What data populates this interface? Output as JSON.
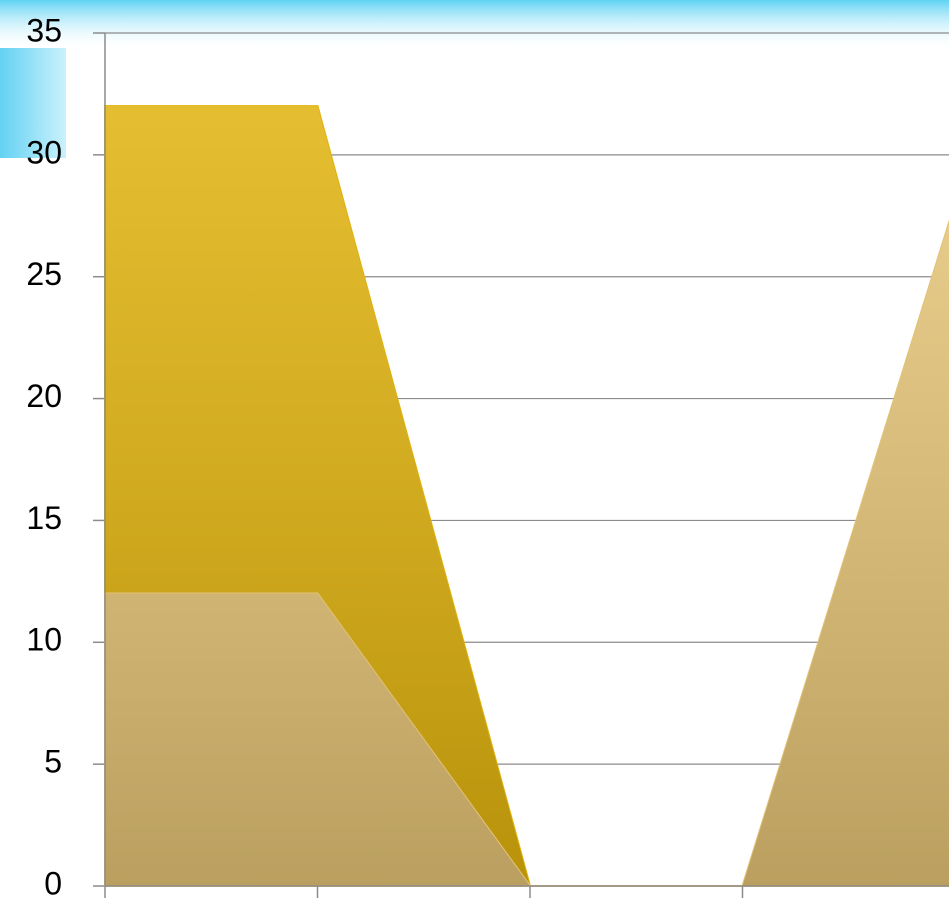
{
  "chart_data": {
    "type": "area",
    "categories": [
      null,
      null,
      null,
      null,
      null
    ],
    "series": [
      {
        "color": "#e0b20c",
        "values": [
          32,
          32,
          0,
          0,
          0
        ]
      },
      {
        "color": "#e3c275",
        "values": [
          12,
          12,
          0,
          0,
          28
        ]
      }
    ],
    "ylim": [
      0,
      35
    ],
    "yticks": [
      0,
      5,
      10,
      15,
      20,
      25,
      30,
      35
    ],
    "grid": true
  }
}
